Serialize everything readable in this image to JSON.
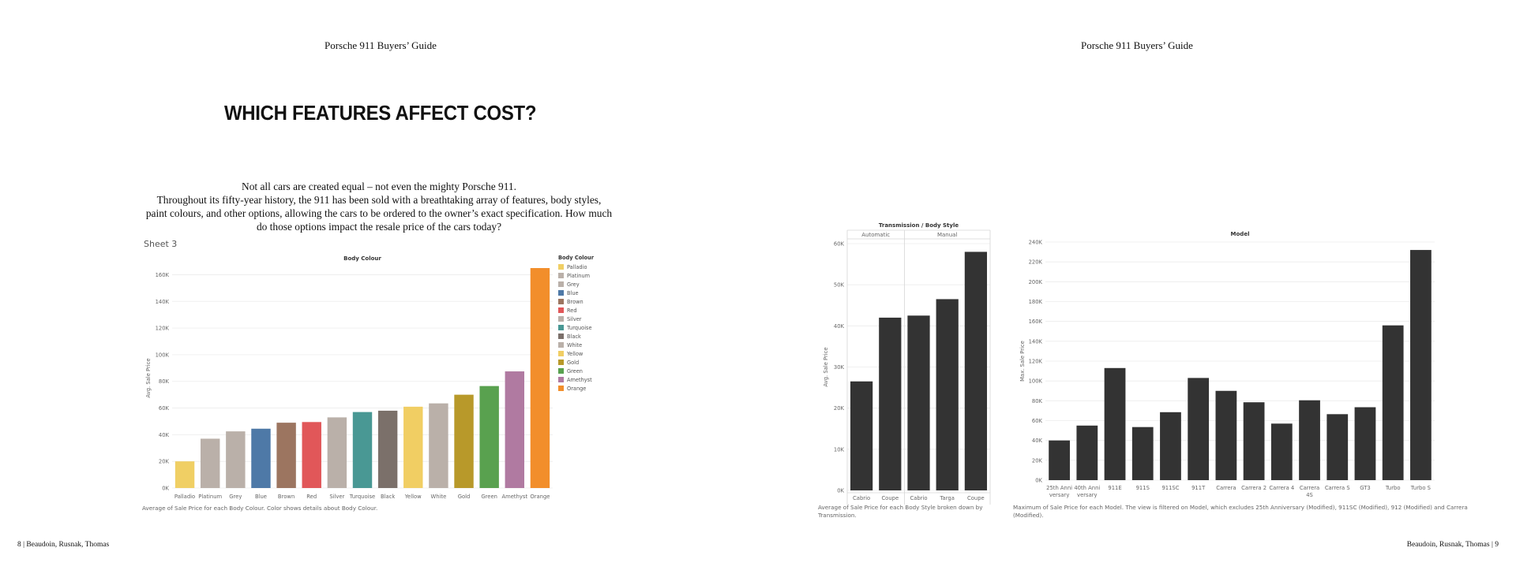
{
  "left_page": {
    "running_header": "Porsche 911 Buyers’ Guide",
    "title": "WHICH FEATURES AFFECT COST?",
    "intro_lines": [
      "Not all cars are created equal – not even the mighty Porsche 911.",
      "Throughout its fifty-year history, the 911 has been sold with a breathtaking array of features, body styles,",
      "paint colours, and other options, allowing the cars to be ordered to the owner’s exact specification. How much",
      "do those options impact the resale price of the cars today?"
    ],
    "sheet_label": "Sheet 3",
    "caption": "Average of Sale Price for each Body Colour.  Color shows details about Body Colour.",
    "footer": "8 | Beaudoin, Rusnak, Thomas"
  },
  "right_page": {
    "running_header": "Porsche 911 Buyers’ Guide",
    "caption_transmission": [
      "Average of Sale Price for each Body Style broken down by",
      "Transmission."
    ],
    "caption_model": [
      "Maximum of Sale Price for each Model. The view is filtered on Model, which excludes 25th Anniversary (Modified), 911SC (Modified), 912 (Modified) and Carrera",
      "(Modified)."
    ],
    "footer": "Beaudoin, Rusnak, Thomas | 9"
  },
  "chart_data": [
    {
      "id": "body_colour",
      "type": "bar",
      "title": "Body Colour",
      "ylabel": "Avg. Sale Price",
      "xlabel": "",
      "ylim": [
        0,
        165000
      ],
      "yticks": [
        0,
        20000,
        40000,
        60000,
        80000,
        100000,
        120000,
        140000,
        160000
      ],
      "ytick_labels": [
        "0K",
        "20K",
        "40K",
        "60K",
        "80K",
        "100K",
        "120K",
        "140K",
        "160K"
      ],
      "categories": [
        "Palladio",
        "Platinum",
        "Grey",
        "Blue",
        "Brown",
        "Red",
        "Silver",
        "Turquoise",
        "Black",
        "Yellow",
        "White",
        "Gold",
        "Green",
        "Amethyst",
        "Orange"
      ],
      "values": [
        20000,
        37000,
        42500,
        44500,
        49000,
        49500,
        53000,
        57000,
        58000,
        61000,
        63500,
        70000,
        76500,
        87500,
        165000
      ],
      "colors": [
        "#f0cf64",
        "#bab0a9",
        "#bab0a9",
        "#4e79a7",
        "#9c7560",
        "#e15759",
        "#bab0a9",
        "#499894",
        "#7b706a",
        "#f1ce63",
        "#bab0a9",
        "#b8992a",
        "#59a14f",
        "#b07aa1",
        "#f28e2b"
      ],
      "grid": true,
      "legend": {
        "title": "Body Colour",
        "position": "right",
        "items": [
          "Palladio",
          "Platinum",
          "Grey",
          "Blue",
          "Brown",
          "Red",
          "Silver",
          "Turquoise",
          "Black",
          "White",
          "Yellow",
          "Gold",
          "Green",
          "Amethyst",
          "Orange"
        ],
        "colors": [
          "#f0cf64",
          "#bab0a9",
          "#bab0a9",
          "#4e79a7",
          "#9c7560",
          "#e15759",
          "#bab0a9",
          "#499894",
          "#7b706a",
          "#bab0a9",
          "#f1ce63",
          "#b8992a",
          "#59a14f",
          "#b07aa1",
          "#f28e2b"
        ]
      }
    },
    {
      "id": "transmission_body_style",
      "type": "bar",
      "title": "Transmission / Body Style",
      "ylabel": "Avg. Sale Price",
      "groups": [
        {
          "name": "Automatic",
          "categories": [
            "Cabrio",
            "Coupe"
          ],
          "values": [
            26500,
            42000
          ]
        },
        {
          "name": "Manual",
          "categories": [
            "Cabrio",
            "Targa",
            "Coupe"
          ],
          "values": [
            42500,
            46500,
            58000
          ]
        }
      ],
      "ylim": [
        0,
        60000
      ],
      "yticks": [
        0,
        10000,
        20000,
        30000,
        40000,
        50000,
        60000
      ],
      "ytick_labels": [
        "0K",
        "10K",
        "20K",
        "30K",
        "40K",
        "50K",
        "60K"
      ],
      "bar_color": "#333333",
      "grid": true
    },
    {
      "id": "model",
      "type": "bar",
      "title": "Model",
      "ylabel": "Max. Sale Price",
      "categories": [
        "25th Anniversary",
        "40th Anniversary",
        "911E",
        "911S",
        "911SC",
        "911T",
        "Carrera",
        "Carrera 2",
        "Carrera 4",
        "Carrera 4S",
        "Carrera S",
        "GT3",
        "Turbo",
        "Turbo S"
      ],
      "tick_labels": [
        [
          "25th Anni",
          "versary"
        ],
        [
          "40th Anni",
          "versary"
        ],
        [
          "911E"
        ],
        [
          "911S"
        ],
        [
          "911SC"
        ],
        [
          "911T"
        ],
        [
          "Carrera"
        ],
        [
          "Carrera 2"
        ],
        [
          "Carrera 4"
        ],
        [
          "Carrera",
          "4S"
        ],
        [
          "Carrera S"
        ],
        [
          "GT3"
        ],
        [
          "Turbo"
        ],
        [
          "Turbo S"
        ]
      ],
      "values": [
        40000,
        55000,
        113000,
        53500,
        68500,
        103000,
        90000,
        78500,
        57000,
        80500,
        66500,
        73500,
        156000,
        232000
      ],
      "ylim": [
        0,
        240000
      ],
      "yticks": [
        0,
        20000,
        40000,
        60000,
        80000,
        100000,
        120000,
        140000,
        160000,
        180000,
        200000,
        220000,
        240000
      ],
      "ytick_labels": [
        "0K",
        "20K",
        "40K",
        "60K",
        "80K",
        "100K",
        "120K",
        "140K",
        "160K",
        "180K",
        "200K",
        "220K",
        "240K"
      ],
      "bar_color": "#333333",
      "grid": true
    }
  ]
}
